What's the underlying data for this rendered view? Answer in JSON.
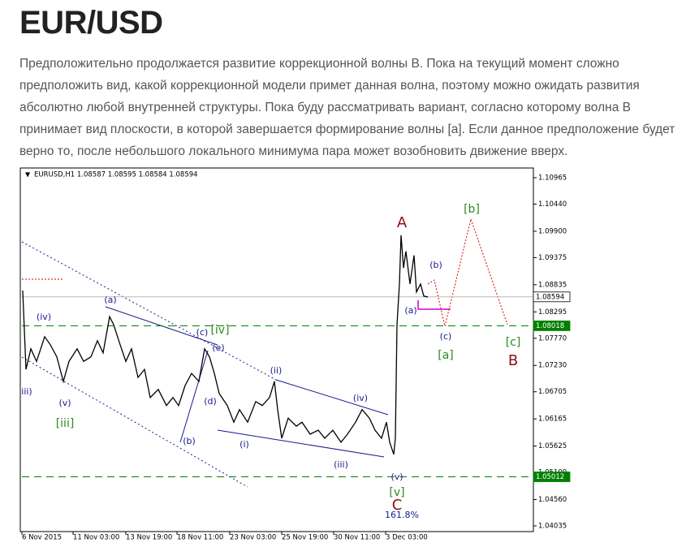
{
  "article": {
    "title": "EUR/USD",
    "lines": [
      "Предположительно продолжается развитие коррекционной волны B. Пока на текущий момент сложно",
      "предположить вид, какой коррекционной модели примет данная волна, поэтому можно ожидать развития",
      "абсолютно любой внутренней структуры. Пока буду рассматривать вариант, согласно которому волна B",
      "принимает вид плоскости, в которой завершается формирование волны [a]. Если данное предположение будет",
      "верно то, после небольшого локального минимума пара может возобновить движение вверх."
    ]
  },
  "chart_data": {
    "type": "line",
    "subtitle": "EURUSD,H1  1.08587 1.08595 1.08584 1.08594",
    "color": "#000000",
    "x": [
      1,
      5,
      11,
      18,
      28,
      35,
      43,
      51,
      58,
      68,
      76,
      85,
      93,
      100,
      108,
      113,
      121,
      128,
      135,
      143,
      151,
      158,
      168,
      178,
      186,
      193,
      201,
      209,
      218,
      225,
      231,
      237,
      243,
      253,
      261,
      268,
      278,
      288,
      296,
      305,
      311,
      315,
      320,
      328,
      338,
      345,
      355,
      365,
      373,
      383,
      393,
      401,
      411,
      419,
      428,
      435,
      443,
      449,
      453,
      458,
      460,
      462,
      465,
      467,
      470,
      473,
      478,
      483,
      486,
      491,
      495,
      500
    ],
    "values": [
      1.0872,
      1.0715,
      1.0756,
      1.0731,
      1.078,
      1.0764,
      1.074,
      1.0691,
      1.0731,
      1.0756,
      1.0731,
      1.074,
      1.0772,
      1.0748,
      1.082,
      1.0804,
      1.0764,
      1.0731,
      1.0756,
      1.0699,
      1.0715,
      1.0659,
      1.0675,
      1.0643,
      1.0659,
      1.0643,
      1.0683,
      1.0707,
      1.0691,
      1.0756,
      1.074,
      1.0707,
      1.0667,
      1.0643,
      1.061,
      1.0635,
      1.061,
      1.0651,
      1.0643,
      1.0659,
      1.0691,
      1.0635,
      1.0578,
      1.0618,
      1.0602,
      1.061,
      1.0586,
      1.0594,
      1.0578,
      1.0594,
      1.057,
      1.0586,
      1.061,
      1.0635,
      1.0618,
      1.0594,
      1.0578,
      1.061,
      1.057,
      1.0546,
      1.0578,
      1.0804,
      1.0885,
      1.0982,
      1.0917,
      1.095,
      1.0885,
      1.0942,
      1.0869,
      1.0885,
      1.0861,
      1.0859
    ],
    "xlim": [
      0,
      630
    ],
    "xticks": [
      {
        "value": 0,
        "label": "6 Nov 2015"
      },
      {
        "value": 63,
        "label": "11 Nov 03:00"
      },
      {
        "value": 128,
        "label": "13 Nov 19:00"
      },
      {
        "value": 191,
        "label": "18 Nov 11:00"
      },
      {
        "value": 256,
        "label": "23 Nov 03:00"
      },
      {
        "value": 320,
        "label": "25 Nov 19:00"
      },
      {
        "value": 384,
        "label": "30 Nov 11:00"
      },
      {
        "value": 448,
        "label": "3 Dec 03:00"
      }
    ],
    "ylim": [
      1.03922,
      1.11143
    ],
    "yticks": [
      1.10965,
      {
        "value": 1.1044,
        "label": "1.10440"
      },
      {
        "value": 1.099,
        "label": "1.09900"
      },
      1.09375,
      1.08835,
      1.08295,
      {
        "value": 1.0777,
        "label": "1.07770"
      },
      {
        "value": 1.0723,
        "label": "1.07230"
      },
      1.06705,
      1.06165,
      1.05625,
      {
        "value": 1.051,
        "label": "1.05100"
      },
      {
        "value": 1.0456,
        "label": "1.04560"
      },
      1.04035
    ],
    "price_levels": [
      1.08594,
      1.08018,
      1.05012
    ],
    "price_level_colors": [
      "#ffffff",
      "#008000",
      "#008000"
    ],
    "annotations": [
      "A",
      "B",
      "C",
      "[b]",
      "[c]",
      "[a]",
      "[iv]",
      "[iii]",
      "[v]",
      "(a)",
      "(b)",
      "(c)",
      "(a)",
      "(b)",
      "(c)",
      "(d)",
      "(e)",
      "(ii)",
      "(iv)",
      "(i)",
      "(iii)",
      "(v)",
      "(iv)",
      "(v)",
      "iii)",
      "161.8%"
    ]
  }
}
